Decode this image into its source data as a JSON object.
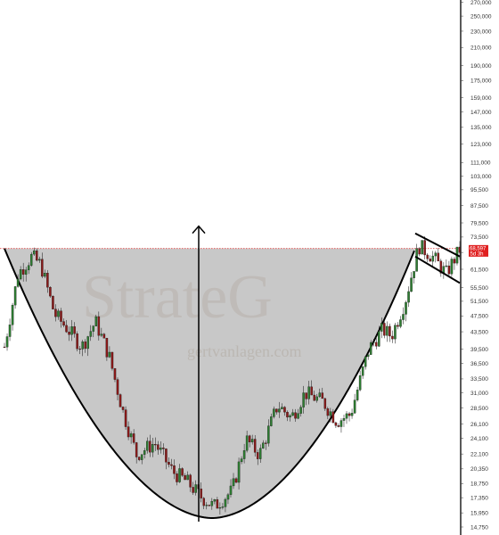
{
  "chart_data": {
    "type": "candlestick",
    "title": "",
    "xlabel": "",
    "ylabel": "",
    "y_scale": "log",
    "ylim": [
      14750,
      270000
    ],
    "grid": false,
    "y_ticks": [
      14750,
      15950,
      17350,
      18750,
      20350,
      22100,
      24100,
      26100,
      28500,
      31000,
      33500,
      36500,
      39500,
      43500,
      47500,
      51500,
      55500,
      61500,
      67500,
      73500,
      79500,
      87500,
      95500,
      103000,
      111000,
      123000,
      135000,
      147000,
      159000,
      175000,
      190000,
      210000,
      230000,
      250000,
      270000
    ],
    "y_tick_labels": [
      "14,750",
      "15,950",
      "17,350",
      "18,750",
      "20,350",
      "22,100",
      "24,100",
      "26,100",
      "28,500",
      "31,000",
      "33,500",
      "36,500",
      "39,500",
      "43,500",
      "47,500",
      "51,500",
      "55,500",
      "61,500",
      "67,500",
      "73,500",
      "79,500",
      "87,500",
      "95,500",
      "103,000",
      "111,000",
      "123,000",
      "135,000",
      "147,000",
      "159,000",
      "175,000",
      "190,000",
      "210,000",
      "230,000",
      "250,000",
      "270,000"
    ],
    "last_price": {
      "value": "68,597",
      "countdown": "5d 3h",
      "level": 68597
    },
    "resistance_level": 69000,
    "cup_bottom": 15500,
    "price_path": [
      [
        0,
        40000
      ],
      [
        3,
        60000
      ],
      [
        6,
        66000
      ],
      [
        8,
        63000
      ],
      [
        11,
        48000
      ],
      [
        14,
        44000
      ],
      [
        17,
        40000
      ],
      [
        20,
        46000
      ],
      [
        23,
        38000
      ],
      [
        26,
        28000
      ],
      [
        29,
        22000
      ],
      [
        33,
        23500
      ],
      [
        37,
        20000
      ],
      [
        40,
        19000
      ],
      [
        43,
        17500
      ],
      [
        46,
        16500
      ],
      [
        50,
        18000
      ],
      [
        53,
        24000
      ],
      [
        56,
        22000
      ],
      [
        60,
        29000
      ],
      [
        63,
        27000
      ],
      [
        66,
        31000
      ],
      [
        70,
        29500
      ],
      [
        73,
        26500
      ],
      [
        76,
        27500
      ],
      [
        80,
        39500
      ],
      [
        83,
        44000
      ],
      [
        85,
        42500
      ],
      [
        88,
        51500
      ],
      [
        91,
        70000
      ],
      [
        94,
        66000
      ],
      [
        97,
        60000
      ],
      [
        100,
        68597
      ]
    ],
    "annotations": {
      "watermark": "StrateG",
      "watermark_url": "gertvanlagen.com",
      "patterns": [
        "cup (curved support)",
        "measured-move arrow",
        "flag channel"
      ]
    }
  },
  "colors": {
    "cup_fill": "#c8c8c8",
    "resistance_line": "#e04848",
    "candle_up": "#2e7d32",
    "candle_down": "#8b1a1a",
    "pattern_line": "#000000",
    "price_tag": "#e02020"
  }
}
